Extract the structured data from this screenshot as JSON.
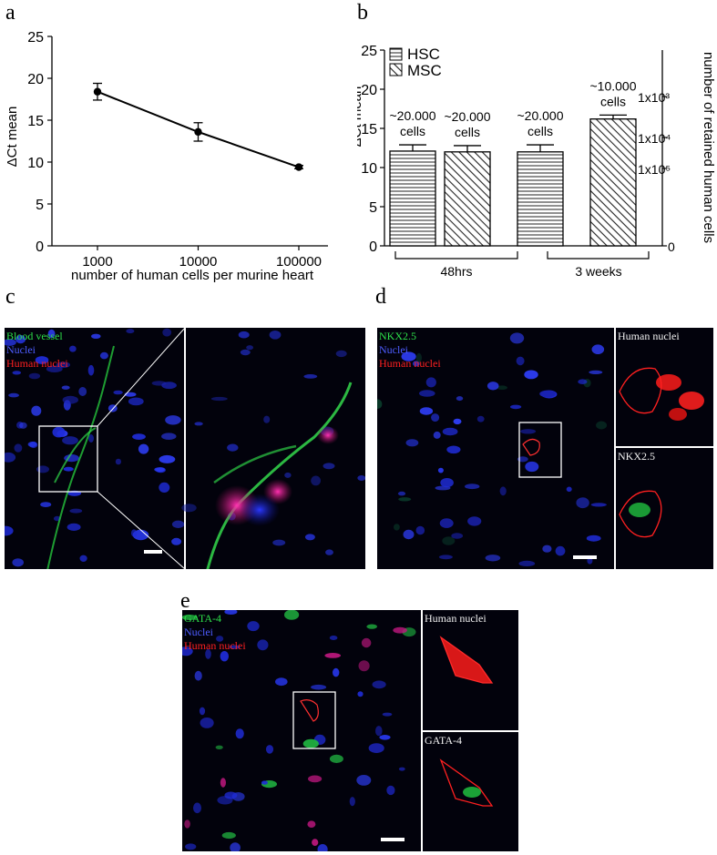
{
  "panels": {
    "a": "a",
    "b": "b",
    "c": "c",
    "d": "d",
    "e": "e"
  },
  "chart_data": [
    {
      "type": "line",
      "xlabel": "number of human cells per murine heart",
      "ylabel": "ΔCt mean",
      "x_scale": "log",
      "x": [
        1000,
        10000,
        100000
      ],
      "x_tick_labels": [
        "1000",
        "10000",
        "100000"
      ],
      "y_ticks": [
        0,
        5,
        10,
        15,
        20,
        25
      ],
      "ylim": [
        0,
        25
      ],
      "series": [
        {
          "values": [
            18.4,
            13.6,
            9.4
          ],
          "errors": [
            1.0,
            1.1,
            0.2
          ]
        }
      ],
      "grid": false
    },
    {
      "type": "bar",
      "ylabel": "ΔCt mean",
      "ylabel_right": "number of retained human cells",
      "ylim": [
        0,
        25
      ],
      "y_ticks": [
        0,
        5,
        10,
        15,
        20,
        25
      ],
      "right_ticks": [
        "1x10³",
        "1x10⁴",
        "1x10⁵",
        "0"
      ],
      "groups": [
        "48hrs",
        "3 weeks"
      ],
      "legend": [
        "HSC",
        "MSC"
      ],
      "legend_position": "top-left",
      "bars": [
        {
          "series": "HSC",
          "group": "48hrs",
          "value": 12.1,
          "error": 0.8,
          "annotation": [
            "~20.000",
            "cells"
          ]
        },
        {
          "series": "MSC",
          "group": "48hrs",
          "value": 12.0,
          "error": 0.8,
          "annotation": [
            "~20.000",
            "cells"
          ]
        },
        {
          "series": "HSC",
          "group": "3 weeks",
          "value": 12.0,
          "error": 0.9,
          "annotation": [
            "~20.000",
            "cells"
          ]
        },
        {
          "series": "MSC",
          "group": "3 weeks",
          "value": 16.2,
          "error": 0.5,
          "annotation": [
            "~10.000",
            "cells"
          ]
        }
      ],
      "grid": false
    }
  ],
  "micrographs": {
    "c": {
      "labels": [
        "Blood vessel",
        "Nuclei",
        "Human nuclei"
      ]
    },
    "d": {
      "labels": [
        "NKX2.5",
        "Nuclei",
        "Human nuclei"
      ],
      "inset_top": "Human nuclei",
      "inset_bottom": "NKX2.5"
    },
    "e": {
      "labels": [
        "GATA-4",
        "Nuclei",
        "Human nuclei"
      ],
      "inset_top": "Human nuclei",
      "inset_bottom": "GATA-4"
    }
  }
}
